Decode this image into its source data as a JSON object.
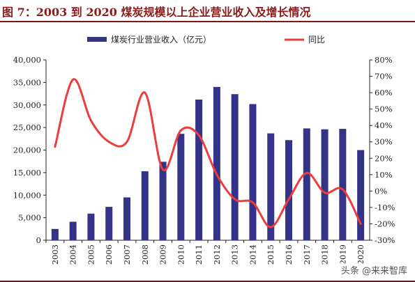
{
  "header": {
    "title": "图 7：2003 到 2020 煤炭规模以上企业营业收入及增长情况"
  },
  "watermark": "头条 @来来智库",
  "colors": {
    "bar": "#33338a",
    "line": "#ee3b3b",
    "title": "#8b1a1a"
  },
  "chart_data": {
    "type": "bar",
    "categories": [
      "2003",
      "2004",
      "2005",
      "2006",
      "2007",
      "2008",
      "2009",
      "2010",
      "2011",
      "2012",
      "2013",
      "2014",
      "2015",
      "2016",
      "2017",
      "2018",
      "2019",
      "2020"
    ],
    "series": [
      {
        "name": "煤炭行业营业收入（亿元）",
        "type": "bar",
        "axis": "left",
        "values": [
          2500,
          4100,
          5900,
          7400,
          9500,
          15300,
          17400,
          23600,
          31200,
          34000,
          32400,
          30200,
          23700,
          22200,
          24800,
          24600,
          24700,
          20000
        ]
      },
      {
        "name": "同比",
        "type": "line",
        "axis": "right",
        "unit": "%",
        "values": [
          27,
          68,
          43,
          30,
          30,
          60,
          13,
          37,
          34,
          10,
          -5,
          -7,
          -22,
          -5,
          11,
          -1,
          1,
          -20
        ]
      }
    ],
    "left_axis": {
      "ylim": [
        0,
        40000
      ],
      "tick_labels": [
        "0",
        "5,000",
        "10,000",
        "15,000",
        "20,000",
        "25,000",
        "30,000",
        "35,000",
        "40,000"
      ]
    },
    "right_axis": {
      "ylim": [
        -30,
        80
      ],
      "tick_labels": [
        "-30%",
        "-20%",
        "-10%",
        "0%",
        "10%",
        "20%",
        "30%",
        "40%",
        "50%",
        "60%",
        "70%",
        "80%"
      ]
    },
    "legend_position": "top",
    "grid": false
  }
}
